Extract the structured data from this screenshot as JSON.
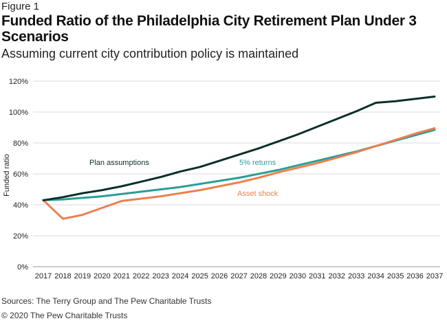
{
  "header": {
    "figure_label": "Figure 1",
    "title": "Funded Ratio of the Philadelphia City Retirement Plan Under 3 Scenarios",
    "subtitle": "Assuming current city contribution policy is maintained"
  },
  "footer": {
    "source": "Sources: The Terry Group and The Pew Charitable Trusts",
    "copyright": "© 2020 The Pew Charitable Trusts"
  },
  "chart_data": {
    "type": "line",
    "title": "Funded Ratio of the Philadelphia City Retirement Plan Under 3 Scenarios",
    "subtitle": "Assuming current city contribution policy is maintained",
    "xlabel": "",
    "ylabel": "Funded ratio",
    "x": [
      "2017",
      "2018",
      "2019",
      "2020",
      "2021",
      "2022",
      "2023",
      "2024",
      "2025",
      "2026",
      "2027",
      "2028",
      "2029",
      "2030",
      "2031",
      "2032",
      "2033",
      "2034",
      "2035",
      "2036",
      "2037"
    ],
    "ylim": [
      0,
      120
    ],
    "yticks": [
      0,
      20,
      40,
      60,
      80,
      100,
      120
    ],
    "ytick_labels": [
      "0%",
      "20%",
      "40%",
      "60%",
      "80%",
      "100%",
      "120%"
    ],
    "grid": "horizontal",
    "series": [
      {
        "name": "Plan assumptions",
        "color": "#0d2e2a",
        "values": [
          43,
          45,
          47.5,
          49.5,
          52,
          55,
          58,
          61.5,
          64.5,
          68.5,
          72.5,
          76.5,
          81,
          85.5,
          90.5,
          95.5,
          100.5,
          106,
          107,
          108.5,
          110
        ]
      },
      {
        "name": "5% returns",
        "color": "#2a9d96",
        "values": [
          43,
          43.5,
          44.5,
          45.5,
          47,
          48.5,
          50,
          51.5,
          53.5,
          55.5,
          57.5,
          60,
          62.5,
          65.5,
          68.5,
          71.5,
          74.5,
          78,
          81.5,
          85,
          88.5
        ]
      },
      {
        "name": "Asset shock",
        "color": "#ee7f4d",
        "values": [
          43,
          31,
          33.5,
          38,
          42.5,
          44,
          45.5,
          47.5,
          49.5,
          52,
          54.5,
          57.5,
          61,
          64,
          67,
          70.5,
          74,
          78,
          82,
          86,
          89.5
        ]
      }
    ],
    "annotations": [
      "Plan assumptions",
      "5% returns",
      "Asset shock"
    ]
  }
}
